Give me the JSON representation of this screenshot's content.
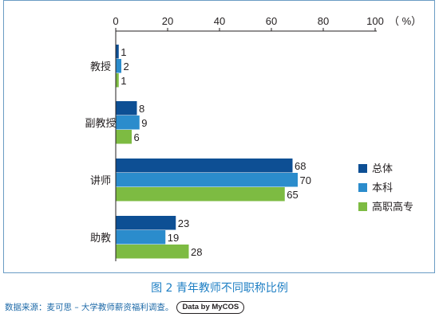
{
  "chart_data": {
    "type": "bar",
    "orientation": "horizontal",
    "categories": [
      "教授",
      "副教授",
      "讲师",
      "助教"
    ],
    "series": [
      {
        "name": "总体",
        "values": [
          1,
          8,
          68,
          23
        ],
        "color": "#0d4f94"
      },
      {
        "name": "本科",
        "values": [
          2,
          9,
          70,
          19
        ],
        "color": "#2b8ccc"
      },
      {
        "name": "高职高专",
        "values": [
          1,
          6,
          65,
          28
        ],
        "color": "#7dbb42"
      }
    ],
    "xlim": [
      0,
      100
    ],
    "xticks": [
      "0",
      "20",
      "40",
      "60",
      "80",
      "100"
    ],
    "unit_label": "（ %）",
    "legend_position": "right",
    "grid": false
  },
  "caption": "图 2  青年教师不同职称比例",
  "source": "数据来源：麦可思 – 大学教师薪资福利调查。",
  "source_badge": "Data by MyCOS"
}
